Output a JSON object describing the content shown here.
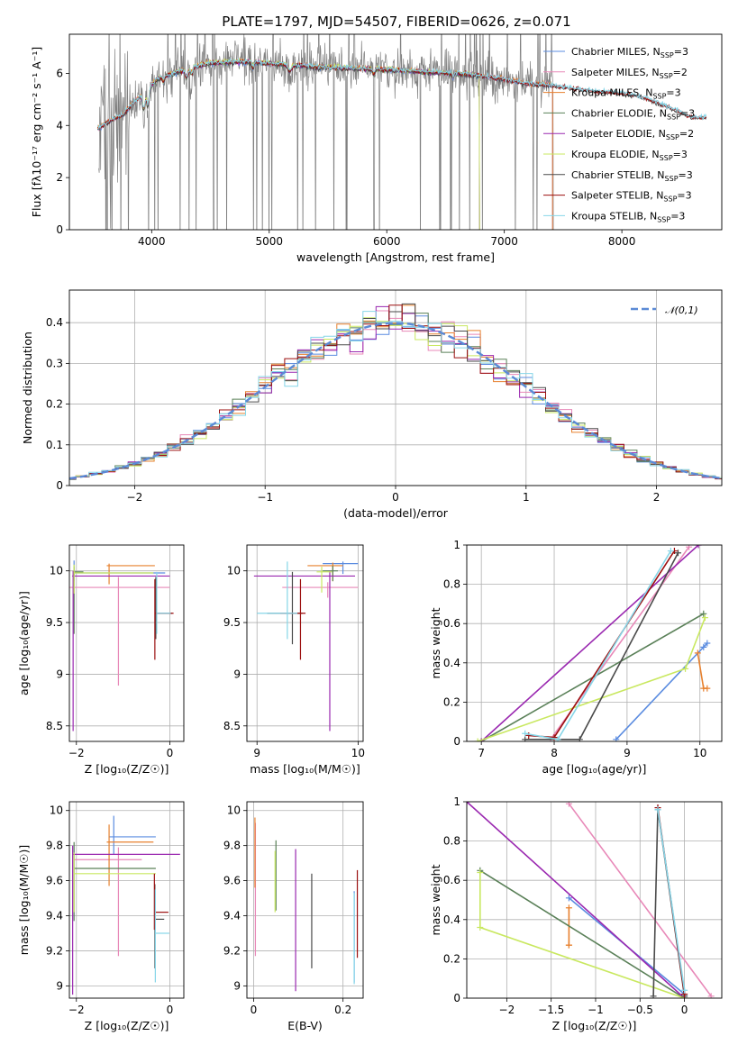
{
  "title": "PLATE=1797, MJD=54507, FIBERID=0626, z=0.071",
  "colors": [
    "#5b8ce0",
    "#e888b8",
    "#e7812f",
    "#5a8058",
    "#9a28b0",
    "#c9e860",
    "#4a4a4a",
    "#9b0f0f",
    "#86d6e8"
  ],
  "chart_data": [
    {
      "type": "line",
      "name": "spectrum",
      "xlabel": "wavelength [Angstrom, rest frame]",
      "ylabel": "Flux [fλ10⁻¹⁷ erg cm⁻² s⁻¹ A⁻¹]",
      "xlim": [
        3300,
        8850
      ],
      "ylim": [
        0,
        7.5
      ],
      "xticks": [
        4000,
        5000,
        6000,
        7000,
        8000
      ],
      "yticks": [
        0,
        2,
        4,
        6
      ],
      "legend_location": "top-right",
      "legend": [
        "Chabrier MILES, N_SSP=3",
        "Salpeter MILES, N_SSP=2",
        "Kroupa MILES, N_SSP=3",
        "Chabrier ELODIE, N_SSP=3",
        "Salpeter ELODIE, N_SSP=2",
        "Kroupa ELODIE, N_SSP=3",
        "Chabrier STELIB, N_SSP=3",
        "Salpeter STELIB, N_SSP=3",
        "Kroupa STELIB, N_SSP=3"
      ],
      "data_range": [
        3550,
        7420
      ],
      "model_anchors": {
        "x": [
          3550,
          3650,
          3750,
          3850,
          3950,
          4050,
          4250,
          4500,
          4800,
          5100,
          5400,
          5700,
          6000,
          6300,
          6600,
          6900,
          7200,
          7400,
          7600,
          7800,
          8000,
          8200,
          8400,
          8600
        ],
        "y": [
          3.9,
          4.2,
          4.4,
          4.9,
          5.3,
          5.8,
          6.1,
          6.4,
          6.45,
          6.35,
          6.25,
          6.2,
          6.15,
          6.05,
          6.0,
          5.85,
          5.6,
          5.55,
          5.4,
          5.3,
          5.25,
          5.05,
          4.7,
          4.3
        ]
      },
      "model_xrange": {
        "MILES": [
          3540,
          7410
        ],
        "ELODIE": [
          3900,
          6790
        ],
        "STELIB": [
          3540,
          8720
        ]
      }
    },
    {
      "type": "bar",
      "name": "residual histogram",
      "xlabel": "(data-model)/error",
      "ylabel": "Normed distribution",
      "xlim": [
        -2.5,
        2.5
      ],
      "ylim": [
        0,
        0.48
      ],
      "xticks": [
        -2,
        -1,
        0,
        1,
        2
      ],
      "yticks": [
        0.0,
        0.1,
        0.2,
        0.3,
        0.4
      ],
      "legend_location": "top-right",
      "legend": [
        "𝒩(0,1)"
      ],
      "bin_width": 0.1,
      "gaussian": {
        "mean": 0,
        "sigma": 1
      }
    },
    {
      "type": "scatter",
      "name": "age vs Z",
      "xlabel": "Z [log₁₀(Z/Z☉)]",
      "ylabel": "age  [log₁₀(age/yr)]",
      "xlim": [
        -2.15,
        0.3
      ],
      "ylim": [
        8.35,
        10.25
      ],
      "xticks": [
        -2,
        0
      ],
      "yticks": [
        8.5,
        9.0,
        9.5,
        10.0
      ],
      "points": [
        {
          "x": -2.05,
          "y": 9.98,
          "xe": [
            0,
            1.95
          ],
          "ye": [
            0.08,
            0.12
          ]
        },
        {
          "x": -1.1,
          "y": 9.84,
          "xe": [
            1.05,
            1.1
          ],
          "ye": [
            0.95,
            0.1
          ]
        },
        {
          "x": -1.3,
          "y": 10.05,
          "xe": [
            0.05,
            0.98
          ],
          "ye": [
            0.18,
            0.02
          ]
        },
        {
          "x": -2.05,
          "y": 9.99,
          "xe": [
            0,
            0.2
          ],
          "ye": [
            0.6,
            0.05
          ]
        },
        {
          "x": -2.07,
          "y": 9.95,
          "xe": [
            0.02,
            2.07
          ],
          "ye": [
            1.5,
            0.05
          ]
        },
        {
          "x": -2.05,
          "y": 9.98,
          "xe": [
            0,
            1.7
          ],
          "ye": [
            0.2,
            0.08
          ]
        },
        {
          "x": -0.3,
          "y": 9.59,
          "xe": [
            0,
            0.35
          ],
          "ye": [
            0.25,
            0.35
          ]
        },
        {
          "x": -0.32,
          "y": 9.59,
          "xe": [
            0,
            0.4
          ],
          "ye": [
            0.45,
            0.33
          ]
        },
        {
          "x": -0.28,
          "y": 9.59,
          "xe": [
            0,
            0.3
          ],
          "ye": [
            0.2,
            0.4
          ]
        }
      ]
    },
    {
      "type": "scatter",
      "name": "age vs mass",
      "xlabel": "mass [log₁₀(M/M☉)]",
      "ylabel": "",
      "xlim": [
        8.9,
        10.05
      ],
      "ylim": [
        8.35,
        10.25
      ],
      "xticks": [
        9,
        10
      ],
      "yticks": [
        8.5,
        9.0,
        9.5,
        10.0
      ],
      "points": [
        {
          "x": 9.85,
          "y": 10.07,
          "xe": [
            0.2,
            0.15
          ],
          "ye": [
            0.1,
            0.02
          ]
        },
        {
          "x": 9.7,
          "y": 9.84,
          "xe": [
            0.45,
            0.3
          ],
          "ye": [
            0.1,
            0.05
          ]
        },
        {
          "x": 9.75,
          "y": 10.05,
          "xe": [
            0.25,
            0.1
          ],
          "ye": [
            0.15,
            0.03
          ]
        },
        {
          "x": 9.75,
          "y": 10.0,
          "xe": [
            0.1,
            0.05
          ],
          "ye": [
            0.1,
            0.05
          ]
        },
        {
          "x": 9.72,
          "y": 9.95,
          "xe": [
            0.75,
            0.25
          ],
          "ye": [
            1.5,
            0.05
          ]
        },
        {
          "x": 9.64,
          "y": 9.99,
          "xe": [
            0.05,
            0.1
          ],
          "ye": [
            0.2,
            0.05
          ]
        },
        {
          "x": 9.35,
          "y": 9.59,
          "xe": [
            0.25,
            0.1
          ],
          "ye": [
            0.3,
            0.4
          ]
        },
        {
          "x": 9.43,
          "y": 9.59,
          "xe": [
            0.2,
            0.05
          ],
          "ye": [
            0.45,
            0.33
          ]
        },
        {
          "x": 9.3,
          "y": 9.59,
          "xe": [
            0.3,
            0.1
          ],
          "ye": [
            0.25,
            0.5
          ]
        }
      ]
    },
    {
      "type": "line",
      "name": "mass weight vs age",
      "xlabel": "age  [log₁₀(age/yr)]",
      "ylabel": "mass weight",
      "xlim": [
        6.8,
        10.3
      ],
      "ylim": [
        0,
        1
      ],
      "xticks": [
        7,
        8,
        9,
        10
      ],
      "yticks": [
        0.0,
        0.2,
        0.4,
        0.6,
        0.8,
        1.0
      ],
      "series": [
        {
          "x": [
            8.85,
            10.1,
            10.05
          ],
          "y": [
            0.01,
            0.5,
            0.48
          ]
        },
        {
          "x": [
            7.95,
            9.85
          ],
          "y": [
            0.01,
            0.99
          ]
        },
        {
          "x": [
            9.97,
            10.05,
            10.1
          ],
          "y": [
            0.45,
            0.27,
            0.27
          ]
        },
        {
          "x": [
            7.0,
            10.05
          ],
          "y": [
            0.0,
            0.65
          ]
        },
        {
          "x": [
            7.0,
            9.98
          ],
          "y": [
            0.0,
            1.0
          ]
        },
        {
          "x": [
            6.95,
            9.8,
            10.07
          ],
          "y": [
            0.0,
            0.37,
            0.63
          ]
        },
        {
          "x": [
            7.6,
            8.35,
            9.7
          ],
          "y": [
            0.01,
            0.01,
            0.96
          ]
        },
        {
          "x": [
            7.65,
            8.0,
            9.65
          ],
          "y": [
            0.03,
            0.02,
            0.97
          ]
        },
        {
          "x": [
            7.6,
            8.05,
            9.6
          ],
          "y": [
            0.04,
            0.01,
            0.97
          ]
        }
      ]
    },
    {
      "type": "scatter",
      "name": "mass vs Z",
      "xlabel": "Z [log₁₀(Z/Z☉)]",
      "ylabel": "mass [log₁₀(M/M☉)]",
      "xlim": [
        -2.15,
        0.3
      ],
      "ylim": [
        8.93,
        10.05
      ],
      "xticks": [
        -2,
        0
      ],
      "yticks": [
        9.0,
        9.2,
        9.4,
        9.6,
        9.8,
        10.0
      ],
      "points": [
        {
          "x": -1.2,
          "y": 9.85,
          "xe": [
            0.1,
            0.9
          ],
          "ye": [
            0.1,
            0.12
          ]
        },
        {
          "x": -1.1,
          "y": 9.72,
          "xe": [
            0.95,
            0.5
          ],
          "ye": [
            0.55,
            0.07
          ]
        },
        {
          "x": -1.3,
          "y": 9.82,
          "xe": [
            0.05,
            0.95
          ],
          "ye": [
            0.25,
            0.1
          ]
        },
        {
          "x": -2.05,
          "y": 9.67,
          "xe": [
            0,
            1.75
          ],
          "ye": [
            0.3,
            0.15
          ]
        },
        {
          "x": -2.08,
          "y": 9.75,
          "xe": [
            0,
            2.3
          ],
          "ye": [
            0.8,
            0.05
          ]
        },
        {
          "x": -2.05,
          "y": 9.64,
          "xe": [
            0,
            1.75
          ],
          "ye": [
            0.22,
            0.12
          ]
        },
        {
          "x": -0.32,
          "y": 9.38,
          "xe": [
            0,
            0.2
          ],
          "ye": [
            0.28,
            0.2
          ]
        },
        {
          "x": -0.33,
          "y": 9.42,
          "xe": [
            0,
            0.3
          ],
          "ye": [
            0.1,
            0.22
          ]
        },
        {
          "x": -0.31,
          "y": 9.3,
          "xe": [
            0,
            0.3
          ],
          "ye": [
            0.28,
            0.25
          ]
        }
      ]
    },
    {
      "type": "scatter",
      "name": "mass vs E(B-V)",
      "xlabel": "E(B-V)",
      "ylabel": "",
      "xlim": [
        -0.015,
        0.245
      ],
      "ylim": [
        8.93,
        10.05
      ],
      "xticks": [
        0.0,
        0.2
      ],
      "yticks": [
        9.0,
        9.2,
        9.4,
        9.6,
        9.8,
        10.0
      ],
      "points": [
        {
          "x": 0.225,
          "y": 9.32,
          "xe": [
            0,
            0
          ],
          "ye": [
            0.3,
            0.22
          ]
        },
        {
          "x": 0.004,
          "y": 9.65,
          "xe": [
            0,
            0
          ],
          "ye": [
            0.48,
            0.28
          ]
        },
        {
          "x": 0.003,
          "y": 9.66,
          "xe": [
            0,
            0
          ],
          "ye": [
            0.1,
            0.3
          ]
        },
        {
          "x": 0.05,
          "y": 9.68,
          "xe": [
            0,
            0
          ],
          "ye": [
            0.25,
            0.15
          ]
        },
        {
          "x": 0.094,
          "y": 9.42,
          "xe": [
            0,
            0
          ],
          "ye": [
            0.45,
            0.36
          ]
        },
        {
          "x": 0.048,
          "y": 9.62,
          "xe": [
            0,
            0
          ],
          "ye": [
            0.2,
            0.15
          ]
        },
        {
          "x": 0.13,
          "y": 9.37,
          "xe": [
            0,
            0
          ],
          "ye": [
            0.27,
            0.27
          ]
        },
        {
          "x": 0.232,
          "y": 9.38,
          "xe": [
            0,
            0
          ],
          "ye": [
            0.22,
            0.28
          ]
        },
        {
          "x": 0.225,
          "y": 9.28,
          "xe": [
            0,
            0
          ],
          "ye": [
            0.27,
            0.25
          ]
        }
      ]
    },
    {
      "type": "line",
      "name": "mass weight vs Z",
      "xlabel": "Z [log₁₀(Z/Z☉)]",
      "ylabel": "mass weight",
      "xlim": [
        -2.45,
        0.42
      ],
      "ylim": [
        0,
        1
      ],
      "xticks": [
        -2.0,
        -1.5,
        -1.0,
        -0.5,
        0.0
      ],
      "yticks": [
        0.0,
        0.2,
        0.4,
        0.6,
        0.8,
        1.0
      ],
      "series": [
        {
          "x": [
            -1.3,
            0.0,
            0.0
          ],
          "y": [
            0.51,
            0.02,
            0.01
          ]
        },
        {
          "x": [
            -1.3,
            0.3
          ],
          "y": [
            0.99,
            0.01
          ]
        },
        {
          "x": [
            -1.3,
            -1.3,
            -1.3
          ],
          "y": [
            0.46,
            0.27,
            0.27
          ]
        },
        {
          "x": [
            -2.3,
            0.0
          ],
          "y": [
            0.65,
            0.0
          ]
        },
        {
          "x": [
            -2.45,
            0.0
          ],
          "y": [
            1.0,
            0.0
          ]
        },
        {
          "x": [
            -2.3,
            -2.3,
            0.0
          ],
          "y": [
            0.64,
            0.36,
            0.0
          ]
        },
        {
          "x": [
            -0.35,
            -0.3,
            0.0
          ],
          "y": [
            0.01,
            0.96,
            0.01
          ]
        },
        {
          "x": [
            -0.3,
            -0.3,
            0.0
          ],
          "y": [
            0.97,
            0.97,
            0.02
          ]
        },
        {
          "x": [
            -0.3,
            -0.3,
            0.0
          ],
          "y": [
            0.96,
            0.96,
            0.04
          ]
        }
      ]
    }
  ]
}
